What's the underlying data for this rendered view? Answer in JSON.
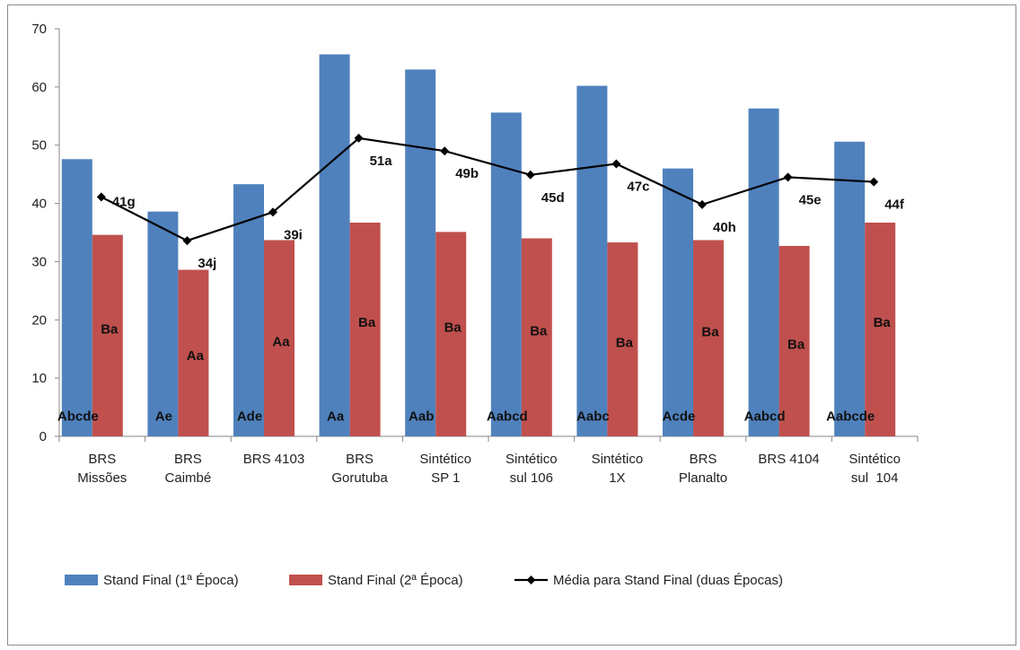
{
  "chart_data": {
    "type": "bar",
    "title": "",
    "xlabel": "",
    "ylabel": "",
    "ylim": [
      0,
      70
    ],
    "yticks": [
      0,
      10,
      20,
      30,
      40,
      50,
      60,
      70
    ],
    "grid": false,
    "legend_position": "bottom",
    "categories": [
      [
        "BRS",
        "Missões"
      ],
      [
        "BRS",
        "Caimbé"
      ],
      [
        "BRS 4103"
      ],
      [
        "BRS",
        "Gorutuba"
      ],
      [
        "Sintético",
        "SP 1"
      ],
      [
        "Sintético",
        "sul 106"
      ],
      [
        "Sintético",
        "1X"
      ],
      [
        "BRS",
        "Planalto"
      ],
      [
        "BRS 4104"
      ],
      [
        "Sintético",
        "sul  104"
      ]
    ],
    "series": [
      {
        "name": "Stand Final (1ª Época)",
        "type": "bar",
        "color": "#4f81bd",
        "values": [
          47.6,
          38.6,
          43.3,
          65.6,
          63.0,
          55.6,
          60.2,
          46.0,
          56.3,
          50.6
        ],
        "labels": [
          "Abcde",
          "Ae",
          "Ade",
          "Aa",
          "Aab",
          "Aabcd",
          "Aabc",
          "Acde",
          "Aabcd",
          "Aabcde"
        ]
      },
      {
        "name": "Stand Final (2ª Época)",
        "type": "bar",
        "color": "#c0504d",
        "values": [
          34.6,
          28.6,
          33.7,
          36.7,
          35.1,
          34.0,
          33.3,
          33.7,
          32.7,
          36.7
        ],
        "labels": [
          "Ba",
          "Aa",
          "Aa",
          "Ba",
          "Ba",
          "Ba",
          "Ba",
          "Ba",
          "Ba",
          "Ba"
        ]
      },
      {
        "name": "Média para Stand Final (duas Épocas)",
        "type": "line",
        "color": "#000000",
        "marker": "diamond",
        "values": [
          41.1,
          33.6,
          38.5,
          51.2,
          49.0,
          44.9,
          46.8,
          39.8,
          44.5,
          43.7
        ],
        "labels": [
          "41g",
          "34j",
          "39i",
          "51a",
          "49b",
          "45d",
          "47c",
          "40h",
          "45e",
          "44f"
        ]
      }
    ]
  }
}
